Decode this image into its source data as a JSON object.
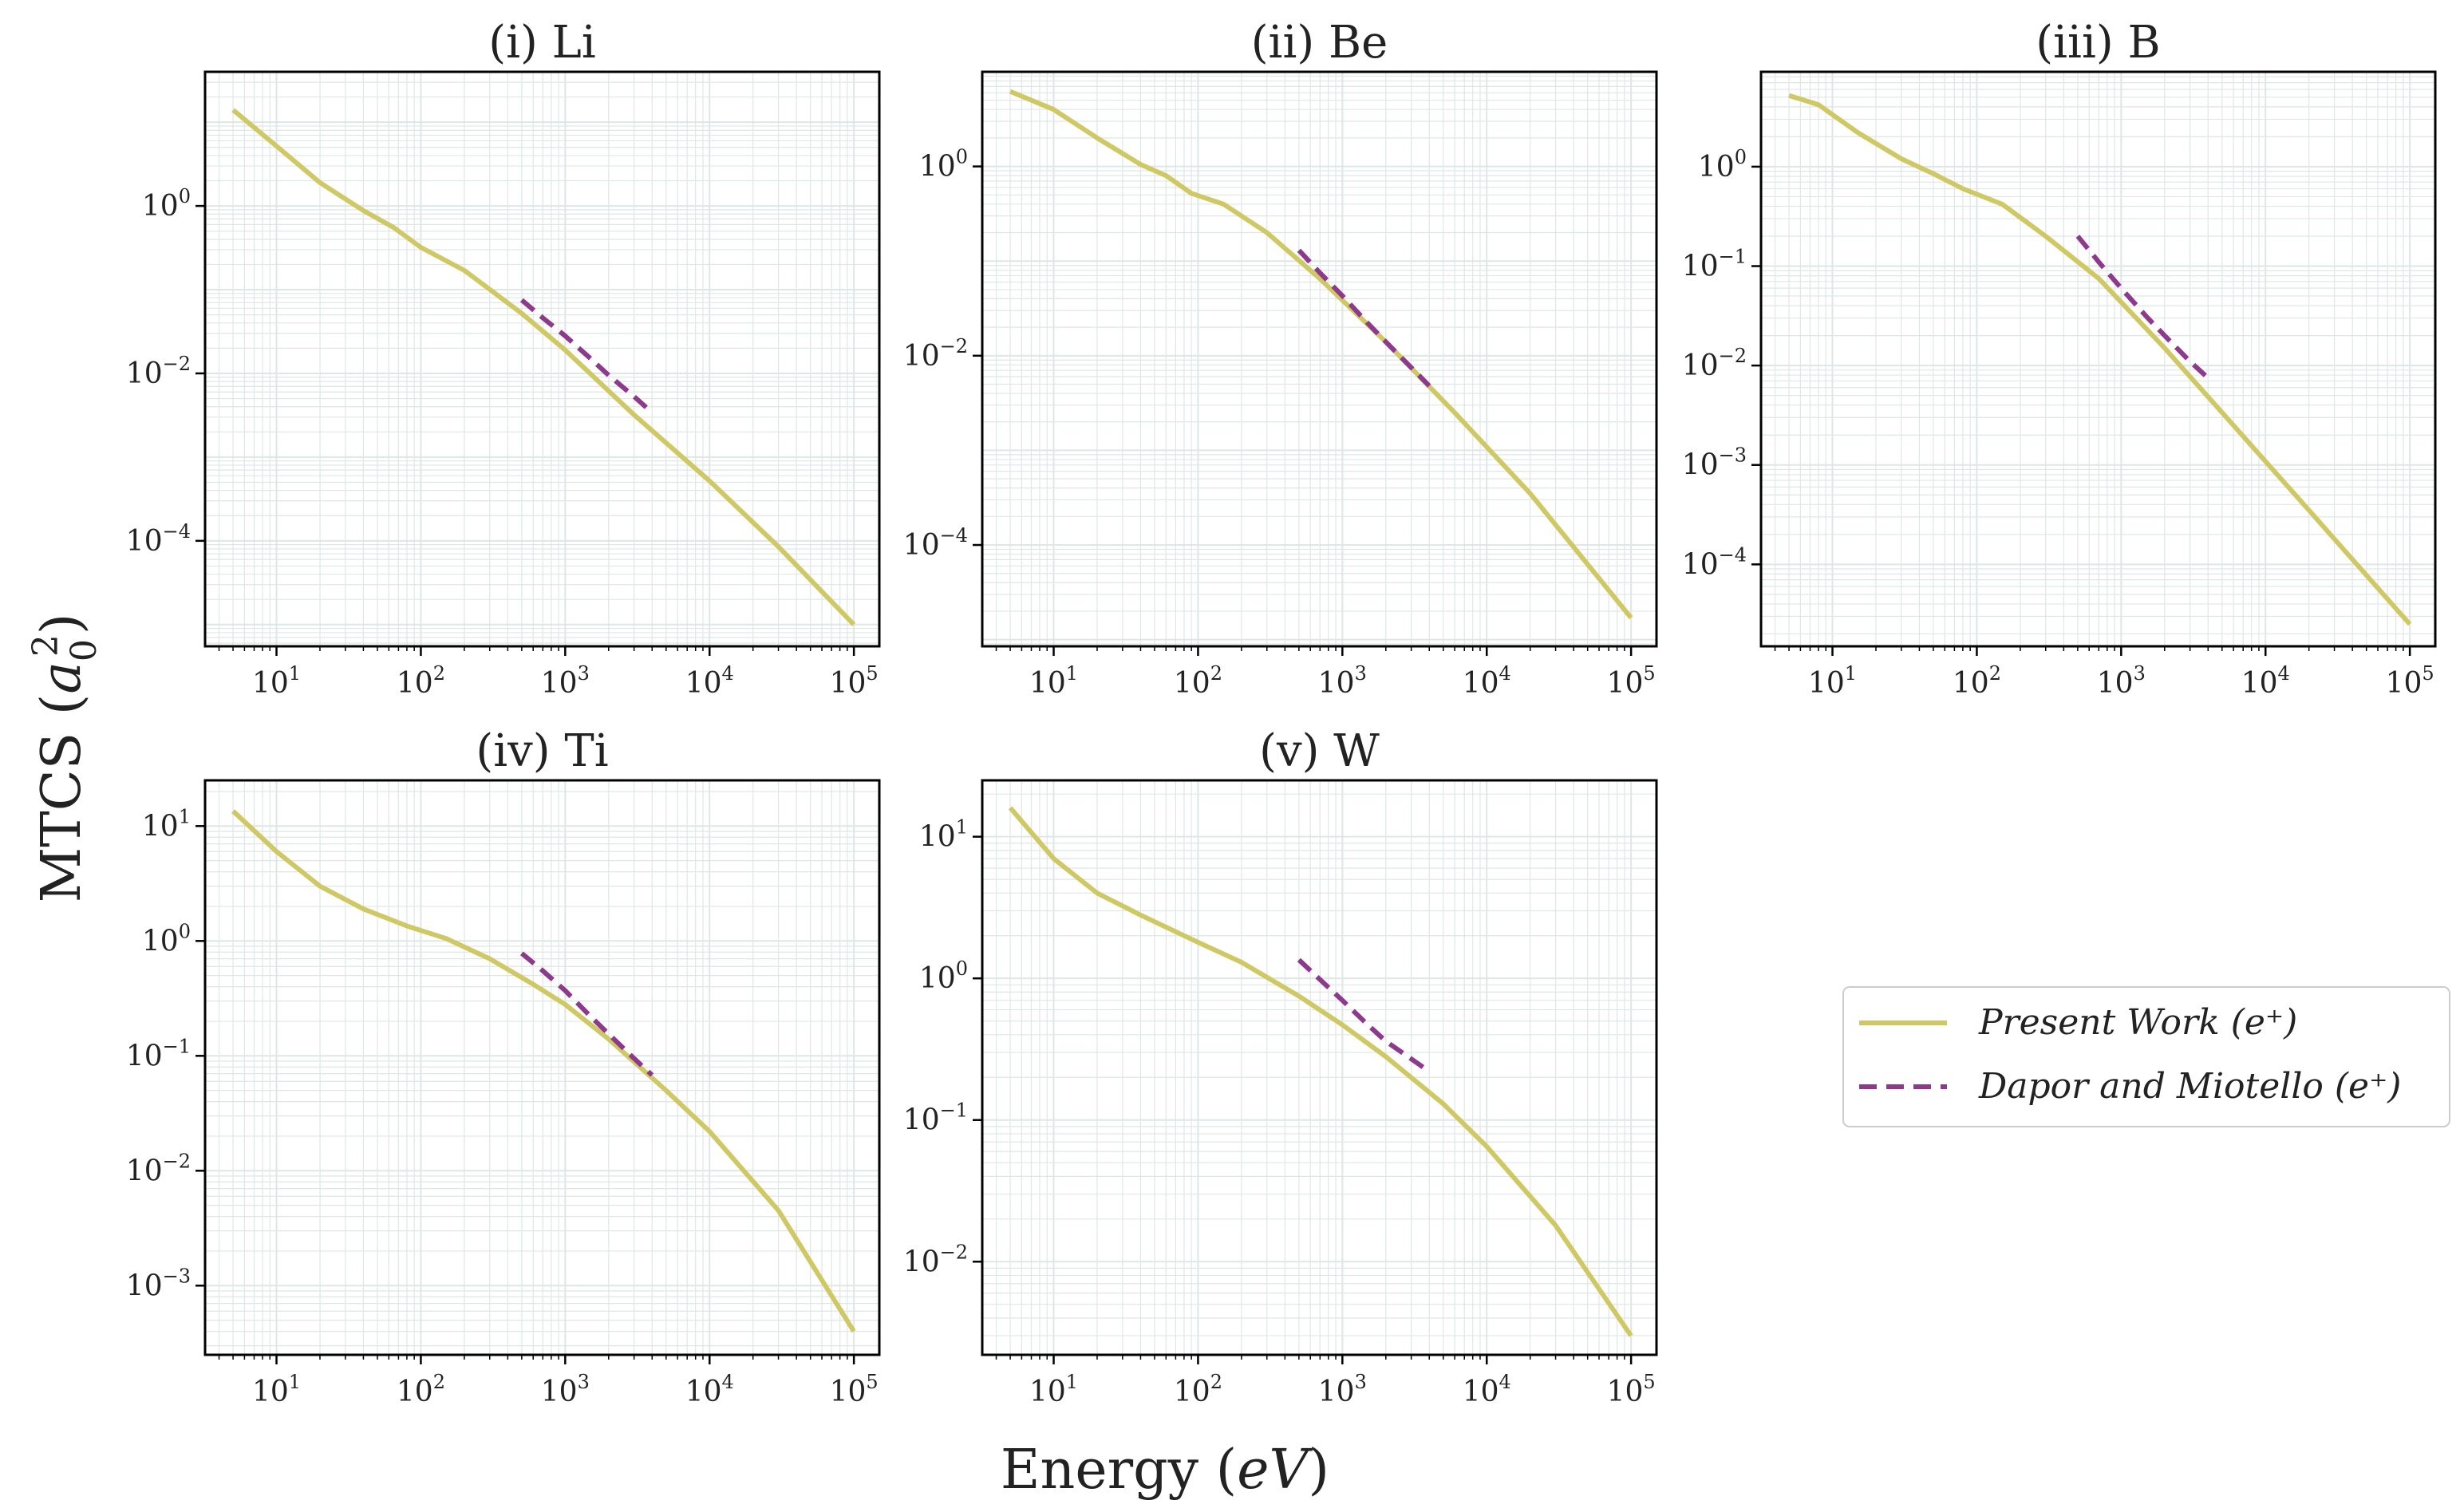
{
  "figure": {
    "xlabel": "Energy (eV)",
    "ylabel": "MTCS (a₀²)"
  },
  "legend": {
    "placement": "right, beside the empty sixth panel",
    "entries": [
      {
        "label": "Present Work (e⁺)",
        "color": "#cfc965",
        "style": "solid"
      },
      {
        "label": "Dapor and Miotello (e⁺)",
        "color": "#8e3a8c",
        "style": "dashed"
      }
    ]
  },
  "colors": {
    "present_work": "#cfc965",
    "dapor_miotello": "#8e3a8c",
    "grid": "#dfe6e6",
    "axes": "#000000"
  },
  "chart_data": [
    {
      "type": "line",
      "title": "(i) Li",
      "xscale": "log",
      "yscale": "log",
      "xlim": [
        3.2,
        150000
      ],
      "ylim": [
        5.5e-06,
        40
      ],
      "xticks": [
        10,
        100,
        1000,
        10000,
        100000
      ],
      "yticks": [
        0.0001,
        0.01,
        1
      ],
      "grid": true,
      "series": [
        {
          "name": "Present Work (e⁺)",
          "x": [
            5,
            10,
            20,
            40,
            65,
            100,
            200,
            500,
            1000,
            3000,
            10000,
            30000,
            100000
          ],
          "y": [
            14,
            5.2,
            1.9,
            0.88,
            0.55,
            0.32,
            0.17,
            0.052,
            0.019,
            0.0032,
            0.00052,
            8.5e-05,
            1e-05
          ]
        },
        {
          "name": "Dapor and Miotello (e⁺)",
          "x": [
            500,
            700,
            1000,
            1500,
            2000,
            3000,
            4000
          ],
          "y": [
            0.075,
            0.046,
            0.028,
            0.015,
            0.0095,
            0.0053,
            0.0034
          ]
        }
      ]
    },
    {
      "type": "line",
      "title": "(ii) Be",
      "xscale": "log",
      "yscale": "log",
      "xlim": [
        3.2,
        150000
      ],
      "ylim": [
        8.5e-06,
        10
      ],
      "xticks": [
        10,
        100,
        1000,
        10000,
        100000
      ],
      "yticks": [
        0.0001,
        0.01,
        1
      ],
      "grid": true,
      "series": [
        {
          "name": "Present Work (e⁺)",
          "x": [
            5,
            10,
            20,
            40,
            60,
            90,
            150,
            300,
            700,
            2000,
            6000,
            20000,
            100000
          ],
          "y": [
            6.2,
            4.0,
            2.0,
            1.05,
            0.8,
            0.52,
            0.4,
            0.2,
            0.065,
            0.014,
            0.0025,
            0.00035,
            1.7e-05
          ]
        },
        {
          "name": "Dapor and Miotello (e⁺)",
          "x": [
            500,
            700,
            1000,
            1500,
            2000,
            3000,
            4000
          ],
          "y": [
            0.13,
            0.075,
            0.043,
            0.022,
            0.014,
            0.0075,
            0.0048
          ]
        }
      ]
    },
    {
      "type": "line",
      "title": "(iii) B",
      "xscale": "log",
      "yscale": "log",
      "xlim": [
        3.2,
        150000
      ],
      "ylim": [
        1.5e-05,
        9
      ],
      "xticks": [
        10,
        100,
        1000,
        10000,
        100000
      ],
      "yticks": [
        0.0001,
        0.001,
        0.01,
        0.1,
        1
      ],
      "grid": true,
      "series": [
        {
          "name": "Present Work (e⁺)",
          "x": [
            5,
            8,
            15,
            30,
            50,
            80,
            150,
            300,
            700,
            2000,
            6000,
            20000,
            100000
          ],
          "y": [
            5.2,
            4.2,
            2.2,
            1.2,
            0.85,
            0.6,
            0.42,
            0.2,
            0.075,
            0.015,
            0.0025,
            0.00035,
            2.5e-05
          ]
        },
        {
          "name": "Dapor and Miotello (e⁺)",
          "x": [
            500,
            700,
            1000,
            1500,
            2000,
            3000,
            4000
          ],
          "y": [
            0.2,
            0.11,
            0.06,
            0.031,
            0.02,
            0.011,
            0.0075
          ]
        }
      ]
    },
    {
      "type": "line",
      "title": "(iv) Ti",
      "xscale": "log",
      "yscale": "log",
      "xlim": [
        3.2,
        150000
      ],
      "ylim": [
        0.00025,
        25
      ],
      "xticks": [
        10,
        100,
        1000,
        10000,
        100000
      ],
      "yticks": [
        0.001,
        0.01,
        0.1,
        1,
        10
      ],
      "grid": true,
      "series": [
        {
          "name": "Present Work (e⁺)",
          "x": [
            5,
            10,
            20,
            40,
            80,
            150,
            300,
            600,
            1000,
            2000,
            5000,
            10000,
            30000,
            100000
          ],
          "y": [
            13.5,
            6.0,
            3.0,
            1.9,
            1.35,
            1.05,
            0.7,
            0.42,
            0.28,
            0.14,
            0.05,
            0.022,
            0.0045,
            0.0004
          ]
        },
        {
          "name": "Dapor and Miotello (e⁺)",
          "x": [
            500,
            700,
            1000,
            1500,
            2000,
            3000,
            4000
          ],
          "y": [
            0.78,
            0.55,
            0.37,
            0.22,
            0.155,
            0.095,
            0.068
          ]
        }
      ]
    },
    {
      "type": "line",
      "title": "(v) W",
      "xscale": "log",
      "yscale": "log",
      "xlim": [
        3.2,
        150000
      ],
      "ylim": [
        0.0022,
        25
      ],
      "xticks": [
        10,
        100,
        1000,
        10000,
        100000
      ],
      "yticks": [
        0.01,
        0.1,
        1,
        10
      ],
      "grid": true,
      "series": [
        {
          "name": "Present Work (e⁺)",
          "x": [
            5,
            10,
            20,
            40,
            100,
            200,
            500,
            1000,
            2000,
            5000,
            10000,
            30000,
            100000
          ],
          "y": [
            16,
            7.0,
            4.0,
            2.8,
            1.8,
            1.3,
            0.75,
            0.47,
            0.28,
            0.13,
            0.065,
            0.018,
            0.003
          ]
        },
        {
          "name": "Dapor and Miotello (e⁺)",
          "x": [
            500,
            700,
            1000,
            1500,
            2000,
            3000,
            4000
          ],
          "y": [
            1.35,
            0.98,
            0.7,
            0.47,
            0.36,
            0.27,
            0.22
          ]
        }
      ]
    }
  ]
}
